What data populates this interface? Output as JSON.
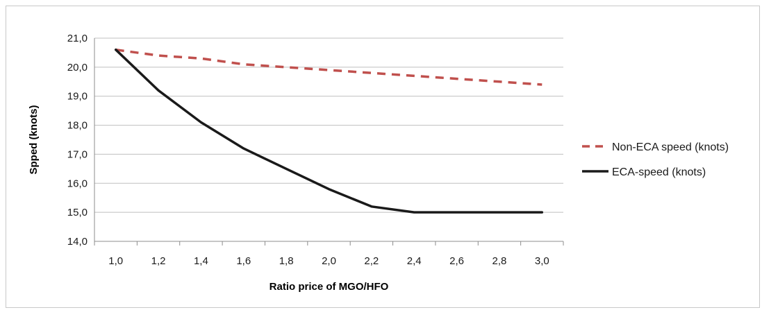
{
  "chart_data": {
    "type": "line",
    "title": "",
    "xlabel": "Ratio price of MGO/HFO",
    "ylabel": "Spped (knots)",
    "categories": [
      "1,0",
      "1,2",
      "1,4",
      "1,6",
      "1,8",
      "2,0",
      "2,2",
      "2,4",
      "2,6",
      "2,8",
      "3,0"
    ],
    "y_tick_labels": [
      "14,0",
      "15,0",
      "16,0",
      "17,0",
      "18,0",
      "19,0",
      "20,0",
      "21,0"
    ],
    "ylim": [
      14,
      21
    ],
    "grid": "horizontal",
    "legend_position": "right",
    "series": [
      {
        "name": "Non-ECA speed (knots)",
        "style": "dashed",
        "color": "#c0504d",
        "values": [
          20.6,
          20.4,
          20.3,
          20.1,
          20.0,
          19.9,
          19.8,
          19.7,
          19.6,
          19.5,
          19.4
        ]
      },
      {
        "name": "ECA-speed (knots)",
        "style": "solid",
        "color": "#1a1a1a",
        "values": [
          20.6,
          19.2,
          18.1,
          17.2,
          16.5,
          15.8,
          15.2,
          15.0,
          15.0,
          15.0,
          15.0
        ]
      }
    ]
  }
}
